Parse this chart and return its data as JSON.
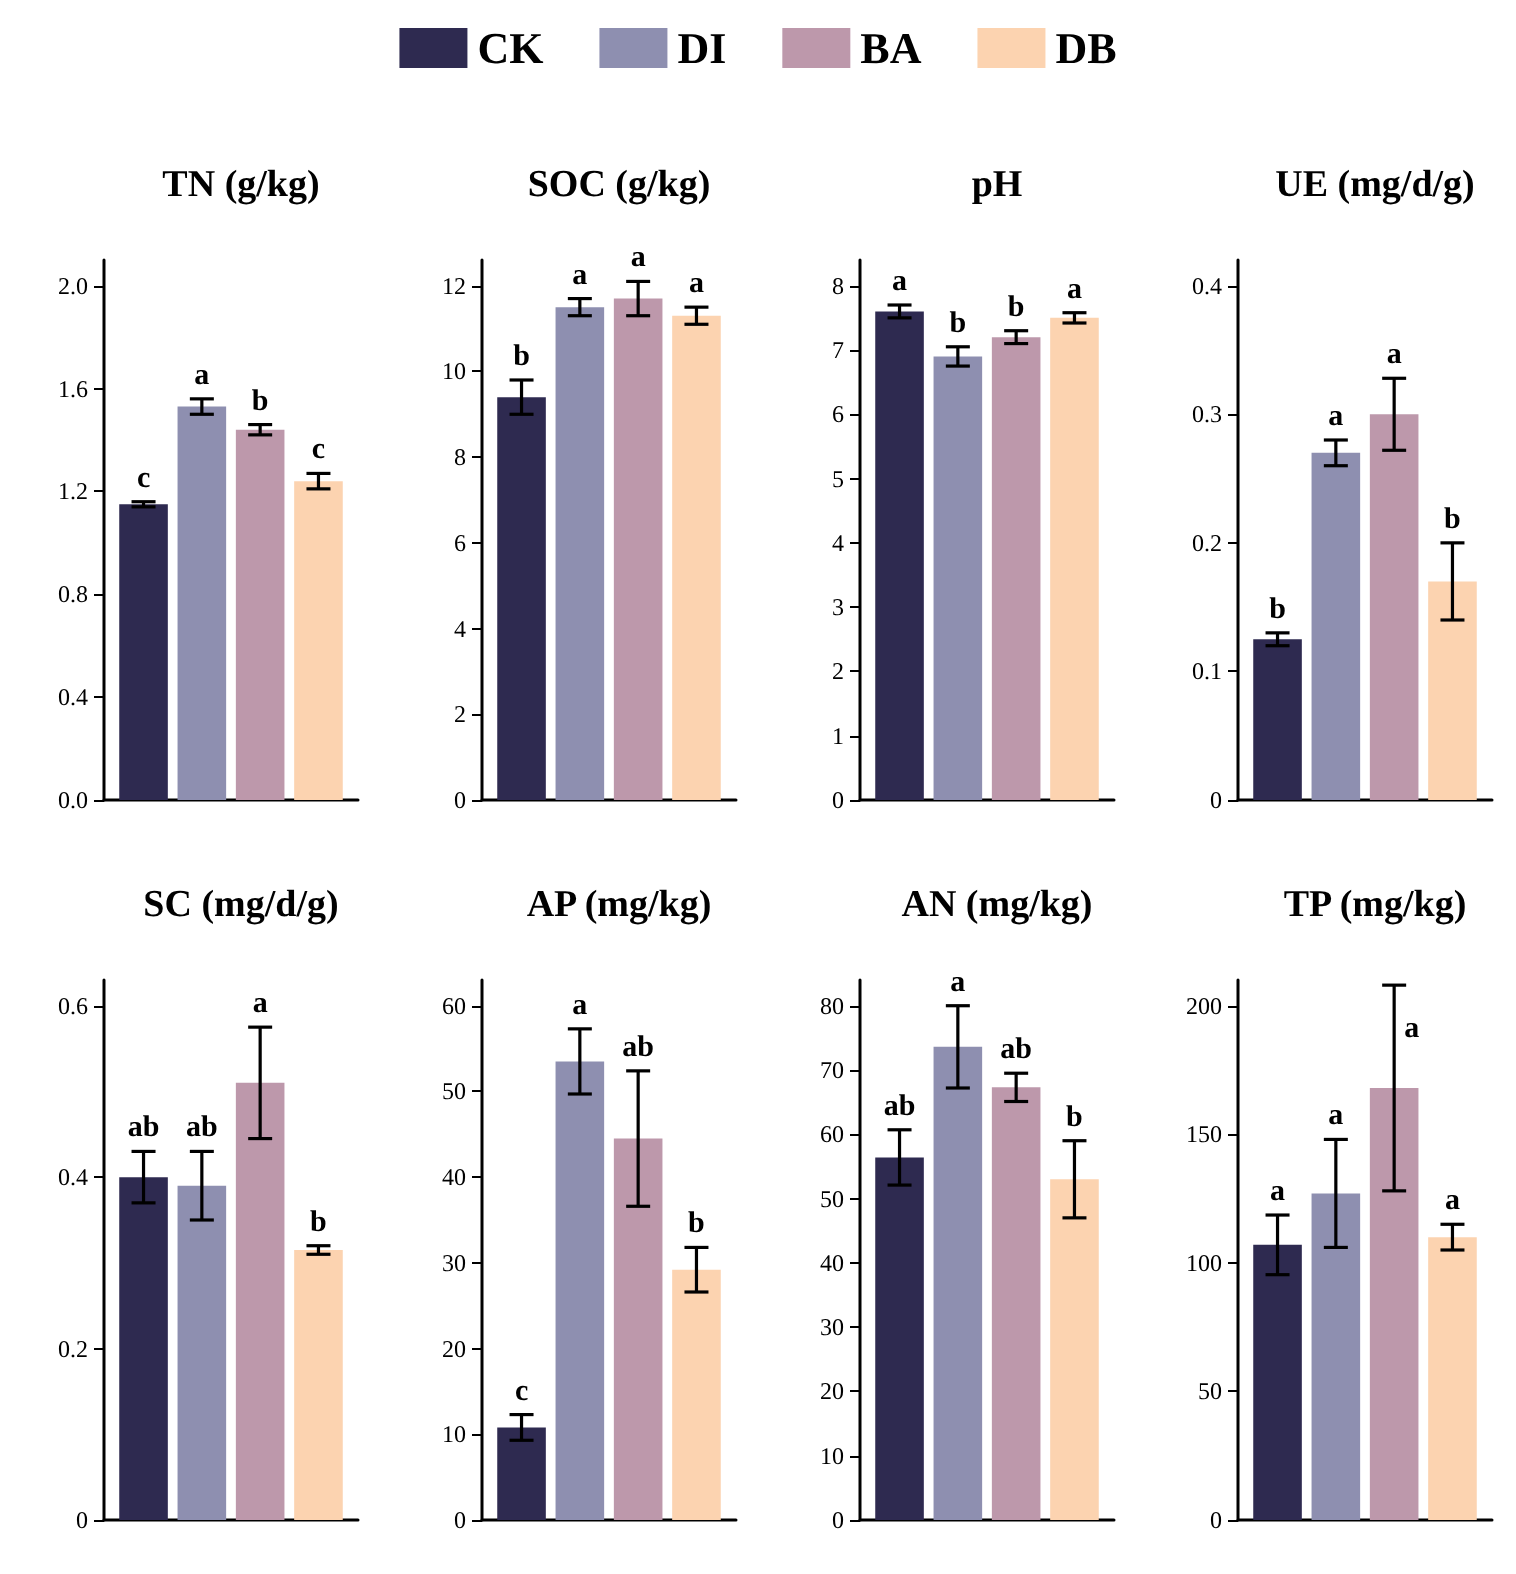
{
  "chart_data": [
    {
      "type": "bar",
      "title": "TN (g/kg)",
      "categories": [
        null
      ],
      "ylim": [
        0,
        2.1
      ],
      "yticks": [
        {
          "value": 0,
          "label": "0.0"
        },
        0.4,
        0.8,
        1.2,
        1.6,
        {
          "value": 2,
          "label": "2.0"
        }
      ],
      "legend": "top",
      "series": [
        {
          "name": "CK",
          "color": "#2e2a50",
          "values": [
            1.15
          ],
          "errors": [
            0.01
          ],
          "value_labels": [
            "c"
          ]
        },
        {
          "name": "DI",
          "color": "#8e8fb0",
          "values": [
            1.53
          ],
          "errors": [
            0.03
          ],
          "value_labels": [
            "a"
          ]
        },
        {
          "name": "BA",
          "color": "#bd98ab",
          "values": [
            1.44
          ],
          "errors": [
            0.02
          ],
          "value_labels": [
            "b"
          ]
        },
        {
          "name": "DB",
          "color": "#fcd3b0",
          "values": [
            1.24
          ],
          "errors": [
            0.03
          ],
          "value_labels": [
            "c"
          ]
        }
      ]
    },
    {
      "type": "bar",
      "title": "SOC (g/kg)",
      "categories": [
        null
      ],
      "ylim": [
        0,
        12.6
      ],
      "yticks": [
        0,
        2,
        4,
        6,
        8,
        10,
        12
      ],
      "series": [
        {
          "color": "#2e2a50",
          "values": [
            9.4
          ],
          "errors": [
            0.4
          ],
          "value_labels": [
            "b"
          ]
        },
        {
          "color": "#8e8fb0",
          "values": [
            11.5
          ],
          "errors": [
            0.2
          ],
          "value_labels": [
            "a"
          ]
        },
        {
          "color": "#bd98ab",
          "values": [
            11.7
          ],
          "errors": [
            0.4
          ],
          "value_labels": [
            "a"
          ]
        },
        {
          "color": "#fcd3b0",
          "values": [
            11.3
          ],
          "errors": [
            0.2
          ],
          "value_labels": [
            "a"
          ]
        }
      ]
    },
    {
      "type": "bar",
      "title": "pH",
      "categories": [
        null
      ],
      "ylim": [
        0,
        8.4
      ],
      "yticks": [
        0,
        1,
        2,
        3,
        4,
        5,
        6,
        7,
        8
      ],
      "series": [
        {
          "color": "#2e2a50",
          "values": [
            7.6
          ],
          "errors": [
            0.1
          ],
          "value_labels": [
            "a"
          ]
        },
        {
          "color": "#8e8fb0",
          "values": [
            6.9
          ],
          "errors": [
            0.15
          ],
          "value_labels": [
            "b"
          ]
        },
        {
          "color": "#bd98ab",
          "values": [
            7.2
          ],
          "errors": [
            0.1
          ],
          "value_labels": [
            "b"
          ]
        },
        {
          "color": "#fcd3b0",
          "values": [
            7.5
          ],
          "errors": [
            0.08
          ],
          "value_labels": [
            "a"
          ]
        }
      ]
    },
    {
      "type": "bar",
      "title": "UE (mg/d/g)",
      "categories": [
        null
      ],
      "ylim": [
        0,
        0.42
      ],
      "yticks": [
        0,
        0.1,
        0.2,
        0.3,
        0.4
      ],
      "series": [
        {
          "color": "#2e2a50",
          "values": [
            0.125
          ],
          "errors": [
            0.005
          ],
          "value_labels": [
            "b"
          ]
        },
        {
          "color": "#8e8fb0",
          "values": [
            0.27
          ],
          "errors": [
            0.01
          ],
          "value_labels": [
            "a"
          ]
        },
        {
          "color": "#bd98ab",
          "values": [
            0.3
          ],
          "errors": [
            0.028
          ],
          "value_labels": [
            "a"
          ]
        },
        {
          "color": "#fcd3b0",
          "values": [
            0.17
          ],
          "errors": [
            0.03
          ],
          "value_labels": [
            "b"
          ]
        }
      ]
    },
    {
      "type": "bar",
      "title": "SC (mg/d/g)",
      "categories": [
        null
      ],
      "ylim": [
        0,
        0.63
      ],
      "yticks": [
        0,
        0.2,
        0.4,
        0.6
      ],
      "series": [
        {
          "color": "#2e2a50",
          "values": [
            0.4
          ],
          "errors": [
            0.03
          ],
          "value_labels": [
            "ab"
          ]
        },
        {
          "color": "#8e8fb0",
          "values": [
            0.39
          ],
          "errors": [
            0.04
          ],
          "value_labels": [
            "ab"
          ]
        },
        {
          "color": "#bd98ab",
          "values": [
            0.51
          ],
          "errors": [
            0.065
          ],
          "value_labels": [
            "a"
          ]
        },
        {
          "color": "#fcd3b0",
          "values": [
            0.315
          ],
          "errors": [
            0.005
          ],
          "value_labels": [
            "b"
          ]
        }
      ]
    },
    {
      "type": "bar",
      "title": "AP (mg/kg)",
      "categories": [
        null
      ],
      "ylim": [
        0,
        63
      ],
      "yticks": [
        0,
        10,
        20,
        30,
        40,
        50,
        60
      ],
      "series": [
        {
          "color": "#2e2a50",
          "values": [
            10.8
          ],
          "errors": [
            1.5
          ],
          "value_labels": [
            "c"
          ]
        },
        {
          "color": "#8e8fb0",
          "values": [
            53.5
          ],
          "errors": [
            3.8
          ],
          "value_labels": [
            "a"
          ]
        },
        {
          "color": "#bd98ab",
          "values": [
            44.5
          ],
          "errors": [
            7.9
          ],
          "value_labels": [
            "ab"
          ]
        },
        {
          "color": "#fcd3b0",
          "values": [
            29.2
          ],
          "errors": [
            2.6
          ],
          "value_labels": [
            "b"
          ]
        }
      ]
    },
    {
      "type": "bar",
      "title": "AN (mg/kg)",
      "categories": [
        null
      ],
      "ylim": [
        0,
        84
      ],
      "yticks": [
        0,
        10,
        20,
        30,
        40,
        50,
        60,
        70,
        80
      ],
      "series": [
        {
          "color": "#2e2a50",
          "values": [
            56.4
          ],
          "errors": [
            4.3
          ],
          "value_labels": [
            "ab"
          ]
        },
        {
          "color": "#8e8fb0",
          "values": [
            73.6
          ],
          "errors": [
            6.4
          ],
          "value_labels": [
            "a"
          ]
        },
        {
          "color": "#bd98ab",
          "values": [
            67.3
          ],
          "errors": [
            2.2
          ],
          "value_labels": [
            "ab"
          ]
        },
        {
          "color": "#fcd3b0",
          "values": [
            53
          ],
          "errors": [
            6
          ],
          "value_labels": [
            "b"
          ]
        }
      ]
    },
    {
      "type": "bar",
      "title": "TP (mg/kg)",
      "categories": [
        null
      ],
      "ylim": [
        0,
        210
      ],
      "yticks": [
        0,
        50,
        100,
        150,
        200
      ],
      "series": [
        {
          "color": "#2e2a50",
          "values": [
            107
          ],
          "errors": [
            11.6
          ],
          "value_labels": [
            "a"
          ]
        },
        {
          "color": "#8e8fb0",
          "values": [
            127
          ],
          "errors": [
            21
          ],
          "value_labels": [
            "a"
          ]
        },
        {
          "color": "#bd98ab",
          "values": [
            168
          ],
          "errors": [
            40
          ],
          "value_labels": [
            "a"
          ]
        },
        {
          "color": "#fcd3b0",
          "values": [
            110
          ],
          "errors": [
            5
          ],
          "value_labels": [
            "a"
          ]
        }
      ]
    }
  ]
}
